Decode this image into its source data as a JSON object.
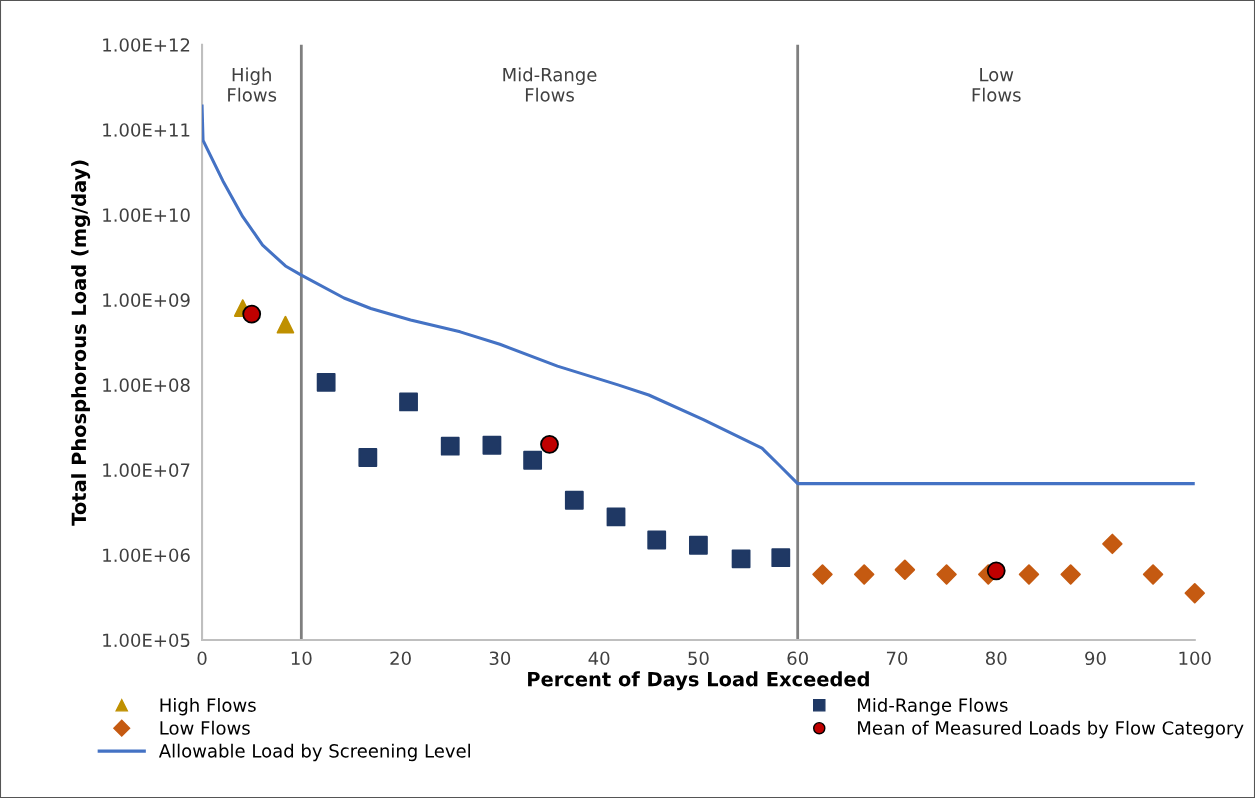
{
  "chart_data": {
    "type": "scatter",
    "xlabel": "Percent of Days Load Exceeded",
    "ylabel": "Total Phosphorous Load (mg/day)",
    "xlim": [
      0,
      100
    ],
    "xticks": [
      0,
      10,
      20,
      30,
      40,
      50,
      60,
      70,
      80,
      90,
      100
    ],
    "ylim": [
      100000,
      1000000000000
    ],
    "log": "y",
    "yticks": [
      {
        "value": 100000,
        "label": "1.00E+05"
      },
      {
        "value": 1000000,
        "label": "1.00E+06"
      },
      {
        "value": 10000000,
        "label": "1.00E+07"
      },
      {
        "value": 100000000,
        "label": "1.00E+08"
      },
      {
        "value": 1000000000,
        "label": "1.00E+09"
      },
      {
        "value": 10000000000,
        "label": "1.00E+10"
      },
      {
        "value": 100000000000,
        "label": "1.00E+11"
      },
      {
        "value": 1000000000000,
        "label": "1.00E+12"
      }
    ],
    "grid": false,
    "legend": "bottom",
    "series": [
      {
        "name": "High Flows",
        "marker": "triangle",
        "color": "#bf9000",
        "x": [
          4.1,
          8.4
        ],
        "values": [
          800000000,
          510000000
        ]
      },
      {
        "name": "Low Flows",
        "marker": "diamond",
        "color": "#c55a11",
        "x": [
          62.5,
          66.7,
          70.8,
          75,
          79.2,
          83.3,
          87.5,
          91.7,
          95.8,
          100
        ],
        "values": [
          590000,
          590000,
          670000,
          590000,
          590000,
          590000,
          590000,
          1350000,
          590000,
          355000
        ]
      },
      {
        "name": "Allowable Load by Screening Level",
        "type": "line",
        "marker": "none",
        "line_style": "solid",
        "color": "#4472c4",
        "x": [
          0,
          0.1,
          2.1,
          4.1,
          6.1,
          8.4,
          10,
          14.3,
          17,
          21,
          26,
          30,
          35.8,
          41.9,
          45,
          50.5,
          56.4,
          58.1,
          60,
          100
        ],
        "values": [
          190000000000,
          75000000000,
          25000000000,
          9500000000,
          4400000000,
          2500000000,
          1950000000,
          1050000000,
          790000000,
          580000000,
          420000000,
          300000000,
          166000000,
          100000000,
          76000000,
          39000000,
          18000000,
          11500000,
          6900000,
          6900000
        ]
      },
      {
        "name": "Mid-Range Flows",
        "marker": "square",
        "color": "#1f3864",
        "x": [
          12.5,
          16.7,
          20.8,
          25,
          29.2,
          33.3,
          37.5,
          41.7,
          45.8,
          50,
          54.3,
          58.3
        ],
        "values": [
          107000000,
          14000000,
          63000000,
          19000000,
          19500000,
          13000000,
          4400000,
          2800000,
          1500000,
          1300000,
          900000,
          930000
        ]
      },
      {
        "name": "Mean of Measured Loads by Flow Category",
        "marker": "circle",
        "color": "#c00000",
        "x": [
          5,
          35,
          80
        ],
        "values": [
          680000000,
          20000000,
          650000
        ]
      }
    ],
    "ref_lines": [
      {
        "axis": "x",
        "value": 10,
        "color": "#7f7f7f"
      },
      {
        "axis": "x",
        "value": 60,
        "color": "#7f7f7f"
      }
    ],
    "annotations": [
      "High\nFlows",
      "Mid-Range\nFlows",
      "Low\nFlows"
    ]
  }
}
